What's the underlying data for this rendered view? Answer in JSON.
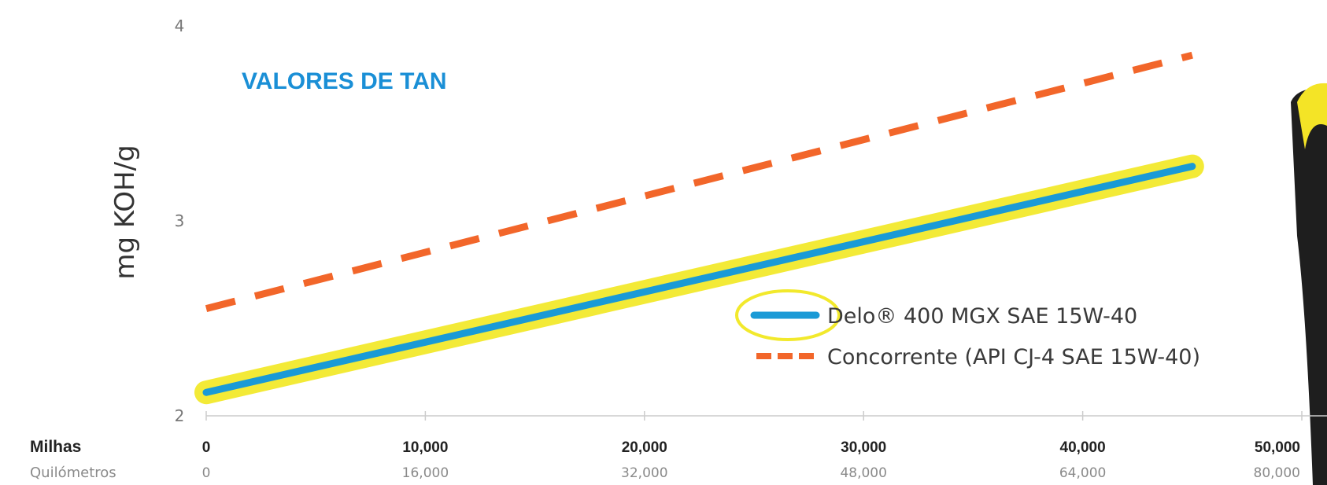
{
  "colors": {
    "series_delo": "#1a9ad6",
    "series_delo_highlight": "#f2e92c",
    "series_concorrente": "#f2662a",
    "title": "#1a8fd6",
    "axis": "#cccccc",
    "product_dark": "#1e1e1e",
    "product_yellow": "#f4e426"
  },
  "chart_data": {
    "type": "line",
    "title": "VALORES DE TAN",
    "ylabel": "mg KOH/g",
    "xlabel": "",
    "ylim": [
      2,
      4
    ],
    "xlim": [
      0,
      50000
    ],
    "y_ticks": [
      "2",
      "3",
      "4"
    ],
    "x_rows": [
      {
        "label": "Milhas",
        "ticks": [
          "0",
          "10,000",
          "20,000",
          "30,000",
          "40,000",
          "50,000"
        ]
      },
      {
        "label": "Quilómetros",
        "ticks": [
          "0",
          "16,000",
          "32,000",
          "48,000",
          "64,000",
          "80,000"
        ]
      }
    ],
    "x_tick_values": [
      0,
      10000,
      20000,
      30000,
      40000,
      50000
    ],
    "grid": false,
    "legend": "bottom-right",
    "series": [
      {
        "name": "Delo® 400 MGX SAE 15W-40",
        "style": "solid",
        "highlighted": true,
        "x": [
          0,
          45000
        ],
        "y": [
          2.12,
          3.28
        ]
      },
      {
        "name": "Concorrente (API CJ-4 SAE 15W-40)",
        "style": "dashed",
        "highlighted": false,
        "x": [
          0,
          45000
        ],
        "y": [
          2.55,
          3.85
        ]
      }
    ]
  }
}
